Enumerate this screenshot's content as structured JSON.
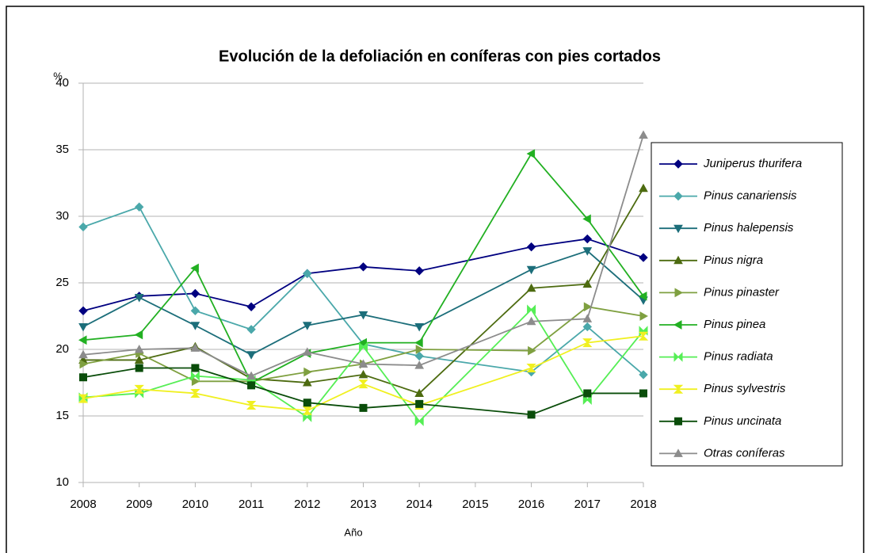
{
  "chart_data": {
    "type": "line",
    "title": "Evolución de la defoliación en coníferas con pies cortados",
    "y_label": "%",
    "x_label": "Año",
    "x": [
      2008,
      2009,
      2010,
      2011,
      2012,
      2013,
      2014,
      2016,
      2017,
      2018
    ],
    "xlim": [
      2008,
      2018
    ],
    "xticks": [
      2008,
      2009,
      2010,
      2011,
      2012,
      2013,
      2014,
      2015,
      2016,
      2017,
      2018
    ],
    "ylim": [
      10,
      40
    ],
    "yticks": [
      10,
      15,
      20,
      25,
      30,
      35,
      40
    ],
    "grid": true,
    "legend": "right",
    "series": [
      {
        "name": "Juniperus thurifera",
        "color": "#000080",
        "marker": "diamond",
        "values": [
          22.9,
          24.0,
          24.2,
          23.2,
          25.7,
          26.2,
          25.9,
          27.7,
          28.3,
          26.9
        ]
      },
      {
        "name": "Pinus canariensis",
        "color": "#4aa8aa",
        "marker": "diamond",
        "values": [
          29.2,
          30.7,
          22.9,
          21.5,
          25.7,
          20.4,
          19.5,
          18.3,
          21.7,
          18.1
        ]
      },
      {
        "name": "Pinus halepensis",
        "color": "#1c6e7a",
        "marker": "down",
        "values": [
          21.7,
          23.9,
          21.8,
          19.6,
          21.8,
          22.6,
          21.7,
          26.0,
          27.4,
          23.7
        ]
      },
      {
        "name": "Pinus nigra",
        "color": "#4d6b10",
        "marker": "up",
        "values": [
          19.2,
          19.2,
          20.2,
          17.8,
          17.5,
          18.1,
          16.7,
          24.6,
          24.9,
          32.1
        ]
      },
      {
        "name": "Pinus pinaster",
        "color": "#7fa040",
        "marker": "right",
        "values": [
          18.9,
          19.7,
          17.6,
          17.6,
          18.3,
          18.9,
          20.0,
          19.9,
          23.2,
          22.5
        ]
      },
      {
        "name": "Pinus pinea",
        "color": "#22b022",
        "marker": "left",
        "values": [
          20.7,
          21.1,
          26.1,
          17.5,
          19.7,
          20.5,
          20.5,
          34.7,
          29.8,
          24.0
        ]
      },
      {
        "name": "Pinus radiata",
        "color": "#55ee55",
        "marker": "bowtie",
        "values": [
          16.4,
          16.7,
          18.0,
          17.7,
          14.9,
          20.2,
          14.6,
          23.0,
          16.2,
          21.4
        ]
      },
      {
        "name": "Pinus sylvestris",
        "color": "#f0f020",
        "marker": "hourglass",
        "values": [
          16.3,
          17.0,
          16.7,
          15.8,
          15.4,
          17.4,
          15.8,
          18.6,
          20.5,
          21.0
        ]
      },
      {
        "name": "Pinus uncinata",
        "color": "#0a4d0a",
        "marker": "square",
        "values": [
          17.9,
          18.6,
          18.6,
          17.3,
          16.0,
          15.6,
          15.9,
          15.1,
          16.7,
          16.7
        ]
      },
      {
        "name": "Otras coníferas",
        "color": "#8c8c8c",
        "marker": "up",
        "values": [
          19.6,
          20.0,
          20.1,
          18.0,
          19.8,
          18.9,
          18.8,
          22.1,
          22.3,
          36.1
        ]
      }
    ]
  }
}
